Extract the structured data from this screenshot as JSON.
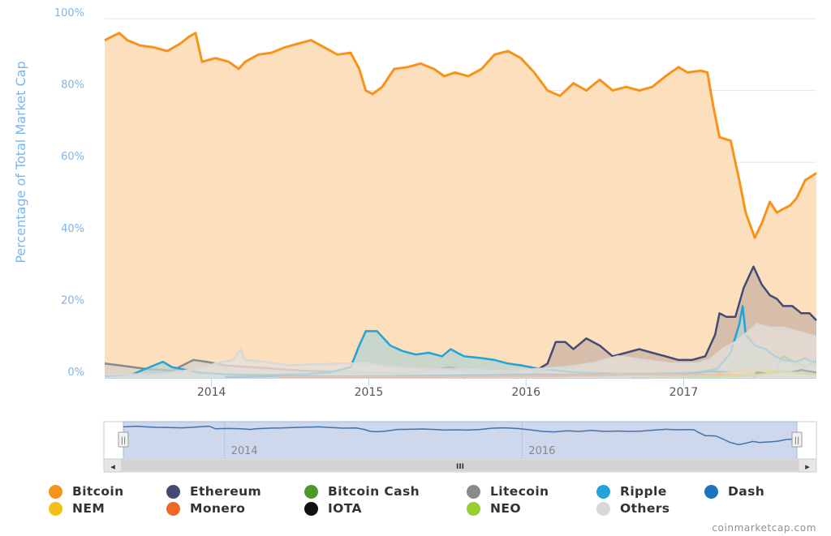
{
  "chart_data": {
    "type": "area",
    "title": "",
    "xlabel": "",
    "ylabel": "Percentage of Total Market Cap",
    "ylim": [
      0,
      100
    ],
    "xlim": [
      "2013-04-28",
      "2017-11-05"
    ],
    "y_ticks": [
      "0%",
      "20%",
      "40%",
      "60%",
      "80%",
      "100%"
    ],
    "x_ticks": [
      {
        "label": "2014",
        "date": "2014-01-01"
      },
      {
        "label": "2015",
        "date": "2015-01-01"
      },
      {
        "label": "2016",
        "date": "2016-01-01"
      },
      {
        "label": "2017",
        "date": "2017-01-01"
      }
    ],
    "grid": true,
    "legend_position": "bottom",
    "series": [
      {
        "name": "Bitcoin",
        "color": "#f7931a",
        "fill": "#fcdfbd",
        "points": [
          [
            "2013-04-28",
            94
          ],
          [
            "2013-06-01",
            96
          ],
          [
            "2013-06-20",
            94
          ],
          [
            "2013-07-20",
            92.5
          ],
          [
            "2013-08-20",
            92
          ],
          [
            "2013-09-20",
            91
          ],
          [
            "2013-10-20",
            93
          ],
          [
            "2013-11-10",
            95
          ],
          [
            "2013-11-25",
            96
          ],
          [
            "2013-12-10",
            88
          ],
          [
            "2014-01-10",
            89
          ],
          [
            "2014-02-10",
            88
          ],
          [
            "2014-03-05",
            86
          ],
          [
            "2014-03-20",
            88
          ],
          [
            "2014-04-20",
            90
          ],
          [
            "2014-05-20",
            90.5
          ],
          [
            "2014-06-20",
            92
          ],
          [
            "2014-07-20",
            93
          ],
          [
            "2014-08-20",
            94
          ],
          [
            "2014-09-20",
            92
          ],
          [
            "2014-10-20",
            90
          ],
          [
            "2014-11-20",
            90.5
          ],
          [
            "2014-12-10",
            86
          ],
          [
            "2014-12-25",
            80
          ],
          [
            "2015-01-10",
            79
          ],
          [
            "2015-02-01",
            81
          ],
          [
            "2015-03-01",
            86
          ],
          [
            "2015-04-01",
            86.5
          ],
          [
            "2015-05-01",
            87.5
          ],
          [
            "2015-06-01",
            86
          ],
          [
            "2015-06-25",
            84
          ],
          [
            "2015-07-20",
            85
          ],
          [
            "2015-08-20",
            84
          ],
          [
            "2015-09-20",
            86
          ],
          [
            "2015-10-20",
            90
          ],
          [
            "2015-11-20",
            91
          ],
          [
            "2015-12-20",
            89
          ],
          [
            "2016-01-20",
            85
          ],
          [
            "2016-02-20",
            80
          ],
          [
            "2016-03-20",
            78.5
          ],
          [
            "2016-04-20",
            82
          ],
          [
            "2016-05-20",
            80
          ],
          [
            "2016-06-20",
            83
          ],
          [
            "2016-07-20",
            80
          ],
          [
            "2016-08-20",
            81
          ],
          [
            "2016-09-20",
            80
          ],
          [
            "2016-10-20",
            81
          ],
          [
            "2016-11-20",
            84
          ],
          [
            "2016-12-20",
            86.5
          ],
          [
            "2017-01-10",
            85
          ],
          [
            "2017-02-10",
            85.5
          ],
          [
            "2017-02-25",
            85
          ],
          [
            "2017-03-10",
            76
          ],
          [
            "2017-03-25",
            67
          ],
          [
            "2017-04-20",
            66
          ],
          [
            "2017-05-10",
            55
          ],
          [
            "2017-05-25",
            46
          ],
          [
            "2017-06-15",
            39
          ],
          [
            "2017-07-01",
            43
          ],
          [
            "2017-07-20",
            49
          ],
          [
            "2017-08-05",
            46
          ],
          [
            "2017-08-20",
            47
          ],
          [
            "2017-09-05",
            48
          ],
          [
            "2017-09-20",
            50
          ],
          [
            "2017-10-10",
            55
          ],
          [
            "2017-11-05",
            57
          ]
        ]
      },
      {
        "name": "Ethereum",
        "color": "#454a75",
        "fill": "#c9b3a6",
        "points": [
          [
            "2015-08-08",
            0
          ],
          [
            "2015-10-01",
            0.6
          ],
          [
            "2015-12-01",
            0.8
          ],
          [
            "2016-01-15",
            1.3
          ],
          [
            "2016-02-20",
            4
          ],
          [
            "2016-03-10",
            10
          ],
          [
            "2016-04-01",
            10
          ],
          [
            "2016-04-20",
            8
          ],
          [
            "2016-05-20",
            11
          ],
          [
            "2016-06-20",
            9
          ],
          [
            "2016-07-20",
            6
          ],
          [
            "2016-08-20",
            7
          ],
          [
            "2016-09-20",
            8
          ],
          [
            "2016-10-20",
            7
          ],
          [
            "2016-11-20",
            6
          ],
          [
            "2016-12-20",
            5
          ],
          [
            "2017-01-20",
            5
          ],
          [
            "2017-02-20",
            6
          ],
          [
            "2017-03-15",
            12
          ],
          [
            "2017-03-25",
            18
          ],
          [
            "2017-04-10",
            17
          ],
          [
            "2017-05-01",
            17
          ],
          [
            "2017-05-20",
            25
          ],
          [
            "2017-06-12",
            31
          ],
          [
            "2017-07-01",
            26
          ],
          [
            "2017-07-20",
            23
          ],
          [
            "2017-08-05",
            22
          ],
          [
            "2017-08-20",
            20
          ],
          [
            "2017-09-10",
            20
          ],
          [
            "2017-10-01",
            18
          ],
          [
            "2017-10-20",
            18
          ],
          [
            "2017-11-05",
            16
          ]
        ]
      },
      {
        "name": "Bitcoin Cash",
        "color": "#4c9a2a",
        "fill": "#c3d9b0",
        "points": [
          [
            "2017-08-01",
            0
          ],
          [
            "2017-08-10",
            4
          ],
          [
            "2017-08-20",
            6
          ],
          [
            "2017-09-05",
            5
          ],
          [
            "2017-09-20",
            4
          ],
          [
            "2017-10-10",
            3
          ],
          [
            "2017-10-25",
            4
          ],
          [
            "2017-11-05",
            4
          ]
        ]
      },
      {
        "name": "Litecoin",
        "color": "#8a8a8a",
        "fill": "#d6d0c8",
        "points": [
          [
            "2013-04-28",
            4
          ],
          [
            "2013-06-01",
            3.5
          ],
          [
            "2013-08-01",
            2.5
          ],
          [
            "2013-10-01",
            2
          ],
          [
            "2013-11-20",
            5
          ],
          [
            "2013-12-20",
            4.5
          ],
          [
            "2014-02-01",
            3.5
          ],
          [
            "2014-04-01",
            3
          ],
          [
            "2014-06-01",
            2.5
          ],
          [
            "2014-08-01",
            2
          ],
          [
            "2014-10-01",
            1.8
          ],
          [
            "2015-01-01",
            1.5
          ],
          [
            "2015-04-01",
            1.3
          ],
          [
            "2015-07-10",
            3
          ],
          [
            "2015-08-01",
            2
          ],
          [
            "2015-11-01",
            1.5
          ],
          [
            "2016-04-01",
            0.9
          ],
          [
            "2016-07-01",
            0.7
          ],
          [
            "2016-12-01",
            0.6
          ],
          [
            "2017-03-01",
            0.8
          ],
          [
            "2017-04-10",
            1.5
          ],
          [
            "2017-05-20",
            2
          ],
          [
            "2017-07-01",
            1.6
          ],
          [
            "2017-09-01",
            1.7
          ],
          [
            "2017-11-05",
            1.6
          ]
        ]
      },
      {
        "name": "Ripple",
        "color": "#23a3d6",
        "fill": "#b7d3d2",
        "points": [
          [
            "2013-04-28",
            0.5
          ],
          [
            "2013-07-01",
            1
          ],
          [
            "2013-08-01",
            2.5
          ],
          [
            "2013-09-10",
            4.5
          ],
          [
            "2013-10-01",
            3
          ],
          [
            "2013-12-01",
            1.5
          ],
          [
            "2014-02-01",
            1
          ],
          [
            "2014-05-01",
            0.8
          ],
          [
            "2014-08-01",
            1
          ],
          [
            "2014-10-01",
            1.5
          ],
          [
            "2014-11-20",
            3
          ],
          [
            "2014-12-10",
            9
          ],
          [
            "2014-12-25",
            13
          ],
          [
            "2015-01-20",
            13
          ],
          [
            "2015-02-20",
            9
          ],
          [
            "2015-03-20",
            7.5
          ],
          [
            "2015-04-20",
            6.5
          ],
          [
            "2015-05-20",
            7
          ],
          [
            "2015-06-20",
            6
          ],
          [
            "2015-07-10",
            8
          ],
          [
            "2015-08-10",
            6
          ],
          [
            "2015-09-20",
            5.5
          ],
          [
            "2015-10-20",
            5
          ],
          [
            "2015-11-20",
            4
          ],
          [
            "2015-12-20",
            3.5
          ],
          [
            "2016-02-01",
            2.5
          ],
          [
            "2016-05-01",
            1.5
          ],
          [
            "2016-08-01",
            1.2
          ],
          [
            "2016-11-01",
            1.2
          ],
          [
            "2017-02-01",
            1.5
          ],
          [
            "2017-03-20",
            2.5
          ],
          [
            "2017-04-20",
            7
          ],
          [
            "2017-05-10",
            15
          ],
          [
            "2017-05-18",
            20
          ],
          [
            "2017-05-25",
            12
          ],
          [
            "2017-06-15",
            9
          ],
          [
            "2017-07-10",
            8
          ],
          [
            "2017-08-01",
            6
          ],
          [
            "2017-08-20",
            5
          ],
          [
            "2017-09-20",
            4.5
          ],
          [
            "2017-10-10",
            5.5
          ],
          [
            "2017-10-25",
            4.5
          ],
          [
            "2017-11-05",
            4.5
          ]
        ]
      },
      {
        "name": "Dash",
        "color": "#1c75bc",
        "fill": "#b3c5d6",
        "points": [
          [
            "2014-02-01",
            0.2
          ],
          [
            "2014-06-01",
            0.5
          ],
          [
            "2014-12-01",
            0.4
          ],
          [
            "2015-06-01",
            0.6
          ],
          [
            "2016-02-01",
            0.9
          ],
          [
            "2016-08-01",
            0.8
          ],
          [
            "2017-01-01",
            1
          ],
          [
            "2017-03-01",
            1.8
          ],
          [
            "2017-05-01",
            1.5
          ],
          [
            "2017-07-01",
            1.2
          ],
          [
            "2017-09-01",
            1.6
          ],
          [
            "2017-11-05",
            1.3
          ]
        ]
      },
      {
        "name": "NEM",
        "color": "#f5bf1a",
        "fill": "#f2dca0",
        "points": [
          [
            "2015-04-01",
            0.1
          ],
          [
            "2016-04-01",
            0.2
          ],
          [
            "2016-07-01",
            0.3
          ],
          [
            "2016-12-01",
            0.4
          ],
          [
            "2017-03-01",
            0.7
          ],
          [
            "2017-04-20",
            1.5
          ],
          [
            "2017-05-20",
            2
          ],
          [
            "2017-06-20",
            1.8
          ],
          [
            "2017-07-20",
            2
          ],
          [
            "2017-08-20",
            1.6
          ],
          [
            "2017-10-01",
            1.4
          ],
          [
            "2017-11-05",
            1.1
          ]
        ]
      },
      {
        "name": "Monero",
        "color": "#f26822",
        "fill": "#f2c4a4",
        "points": [
          [
            "2014-06-01",
            0.2
          ],
          [
            "2015-06-01",
            0.3
          ],
          [
            "2016-06-01",
            0.6
          ],
          [
            "2016-09-01",
            0.9
          ],
          [
            "2016-12-01",
            0.8
          ],
          [
            "2017-03-01",
            0.9
          ],
          [
            "2017-06-01",
            0.6
          ],
          [
            "2017-09-01",
            0.9
          ],
          [
            "2017-11-05",
            0.9
          ]
        ]
      },
      {
        "name": "IOTA",
        "color": "#111111",
        "fill": "#bdbdbd",
        "points": [
          [
            "2017-06-13",
            0
          ],
          [
            "2017-06-20",
            1.5
          ],
          [
            "2017-07-15",
            1.2
          ],
          [
            "2017-08-15",
            1.8
          ],
          [
            "2017-09-10",
            1.6
          ],
          [
            "2017-10-01",
            2.2
          ],
          [
            "2017-10-20",
            1.8
          ],
          [
            "2017-11-05",
            1.5
          ]
        ]
      },
      {
        "name": "NEO",
        "color": "#9acd32",
        "fill": "#d5e6ad",
        "points": [
          [
            "2016-09-01",
            0
          ],
          [
            "2017-03-01",
            0.2
          ],
          [
            "2017-06-01",
            0.6
          ],
          [
            "2017-07-15",
            1.2
          ],
          [
            "2017-08-15",
            2
          ],
          [
            "2017-09-10",
            1.5
          ],
          [
            "2017-10-10",
            1.2
          ],
          [
            "2017-11-05",
            1
          ]
        ]
      },
      {
        "name": "Others",
        "color": "#d8d8d8",
        "fill": "#e6e0da",
        "points": [
          [
            "2013-04-28",
            1
          ],
          [
            "2013-09-01",
            1
          ],
          [
            "2013-12-01",
            2.5
          ],
          [
            "2014-01-10",
            4
          ],
          [
            "2014-02-20",
            5
          ],
          [
            "2014-03-10",
            8
          ],
          [
            "2014-03-20",
            5
          ],
          [
            "2014-05-01",
            4.5
          ],
          [
            "2014-07-01",
            3.5
          ],
          [
            "2014-09-01",
            3.8
          ],
          [
            "2014-11-01",
            4
          ],
          [
            "2015-01-01",
            4
          ],
          [
            "2015-03-01",
            3
          ],
          [
            "2015-06-01",
            2.5
          ],
          [
            "2015-09-01",
            2.2
          ],
          [
            "2015-12-01",
            2
          ],
          [
            "2016-02-01",
            2.5
          ],
          [
            "2016-04-01",
            3
          ],
          [
            "2016-06-01",
            4
          ],
          [
            "2016-07-01",
            5
          ],
          [
            "2016-08-01",
            6
          ],
          [
            "2016-10-01",
            5
          ],
          [
            "2016-12-01",
            4
          ],
          [
            "2017-02-01",
            4
          ],
          [
            "2017-03-01",
            5
          ],
          [
            "2017-04-01",
            8
          ],
          [
            "2017-05-01",
            10
          ],
          [
            "2017-06-01",
            13
          ],
          [
            "2017-06-20",
            15
          ],
          [
            "2017-07-20",
            14
          ],
          [
            "2017-08-20",
            14
          ],
          [
            "2017-09-20",
            13
          ],
          [
            "2017-10-20",
            12
          ],
          [
            "2017-11-05",
            11.5
          ]
        ]
      }
    ]
  },
  "navigator": {
    "x_ticks": [
      {
        "label": "2014",
        "date": "2014-01-01"
      },
      {
        "label": "2016",
        "date": "2016-01-01"
      }
    ],
    "scroll_center_label": "III",
    "scroll_left_arrow": "◂",
    "scroll_right_arrow": "▸",
    "handle_glyph": "||"
  },
  "credit": "coinmarketcap.com"
}
